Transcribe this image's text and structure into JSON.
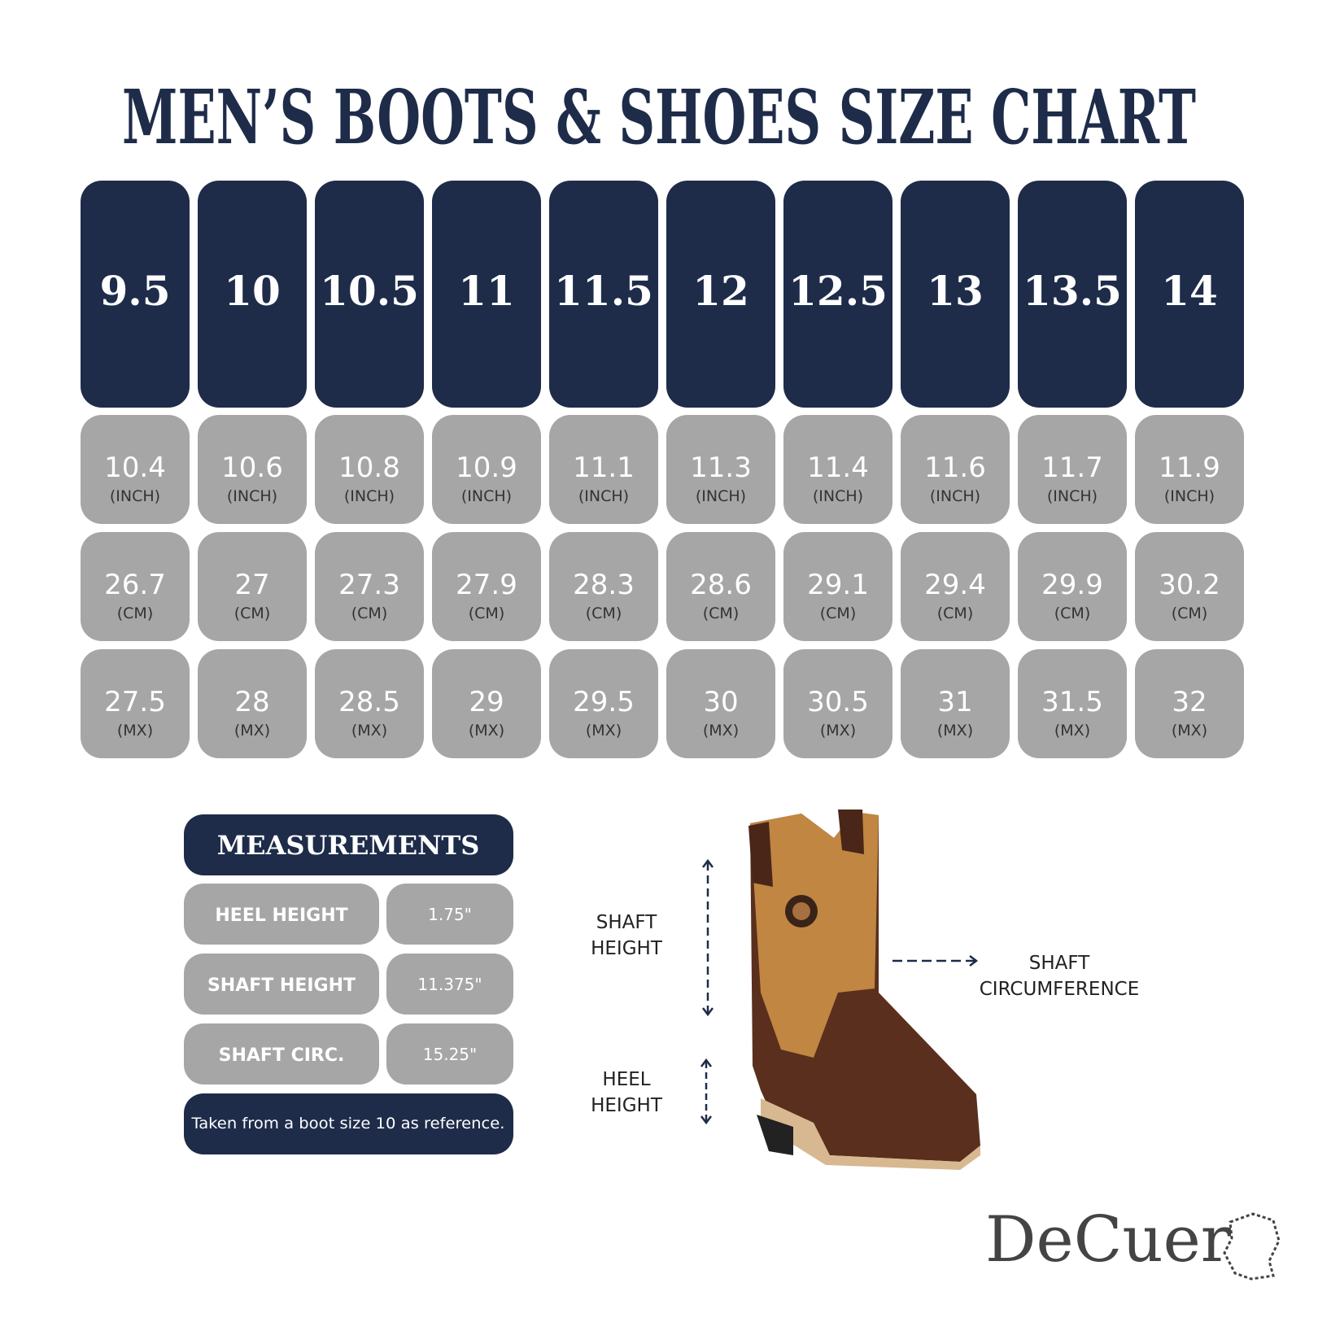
{
  "title": "MEN’S BOOTS & SHOES SIZE CHART",
  "sizes": [
    "9.5",
    "10",
    "10.5",
    "11",
    "11.5",
    "12",
    "12.5",
    "13",
    "13.5",
    "14"
  ],
  "rows": [
    {
      "unit": "(INCH)",
      "values": [
        "10.4",
        "10.6",
        "10.8",
        "10.9",
        "11.1",
        "11.3",
        "11.4",
        "11.6",
        "11.7",
        "11.9"
      ]
    },
    {
      "unit": "(CM)",
      "values": [
        "26.7",
        "27",
        "27.3",
        "27.9",
        "28.3",
        "28.6",
        "29.1",
        "29.4",
        "29.9",
        "30.2"
      ]
    },
    {
      "unit": "(MX)",
      "values": [
        "27.5",
        "28",
        "28.5",
        "29",
        "29.5",
        "30",
        "30.5",
        "31",
        "31.5",
        "32"
      ]
    }
  ],
  "measurements": {
    "title": "MEASUREMENTS",
    "rows": [
      [
        "HEEL HEIGHT",
        "1.75\""
      ],
      [
        "SHAFT HEIGHT",
        "11.375\""
      ],
      [
        "SHAFT CIRC.",
        "15.25\""
      ]
    ],
    "note": "Taken from a boot size 10 as reference."
  },
  "diagram": {
    "shaft_height": [
      "SHAFT",
      "HEIGHT"
    ],
    "heel_height": [
      "HEEL",
      "HEIGHT"
    ],
    "shaft_circumference": [
      "SHAFT",
      "CIRCUMFERENCE"
    ]
  },
  "brand": "DeCuer"
}
